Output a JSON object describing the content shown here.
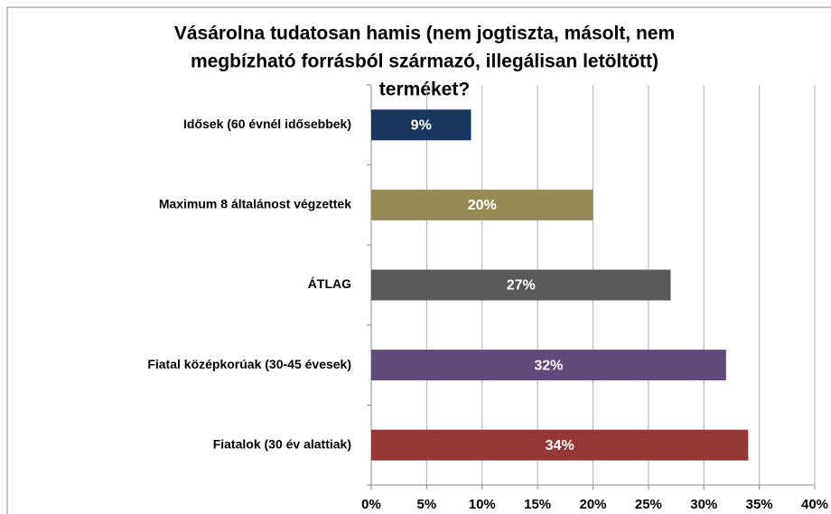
{
  "chart_data": {
    "type": "bar",
    "orientation": "horizontal",
    "title": [
      "Vásárolna tudatosan hamis (nem jogtiszta, másolt, nem",
      "megbízható forrásból származó, illegálisan letöltött)",
      "terméket?"
    ],
    "categories": [
      "Idősek (60 évnél idősebbek)",
      "Maximum 8 általánost végzettek",
      "ÁTLAG",
      "Fiatal középkorúak (30-45 évesek)",
      "Fiatalok (30 év alattiak)"
    ],
    "values": [
      9,
      20,
      27,
      32,
      34
    ],
    "value_labels": [
      "9%",
      "20%",
      "27%",
      "32%",
      "34%"
    ],
    "colors": [
      "#17375e",
      "#948a54",
      "#595959",
      "#604a7b",
      "#953735"
    ],
    "xlim": [
      0,
      40
    ],
    "xticks": [
      {
        "value": 0,
        "label": "0%"
      },
      {
        "value": 5,
        "label": "5%"
      },
      {
        "value": 10,
        "label": "10%"
      },
      {
        "value": 15,
        "label": "15%"
      },
      {
        "value": 20,
        "label": "20%"
      },
      {
        "value": 25,
        "label": "25%"
      },
      {
        "value": 30,
        "label": "30%"
      },
      {
        "value": 35,
        "label": "35%"
      },
      {
        "value": 40,
        "label": "40%"
      }
    ],
    "grid": true
  }
}
